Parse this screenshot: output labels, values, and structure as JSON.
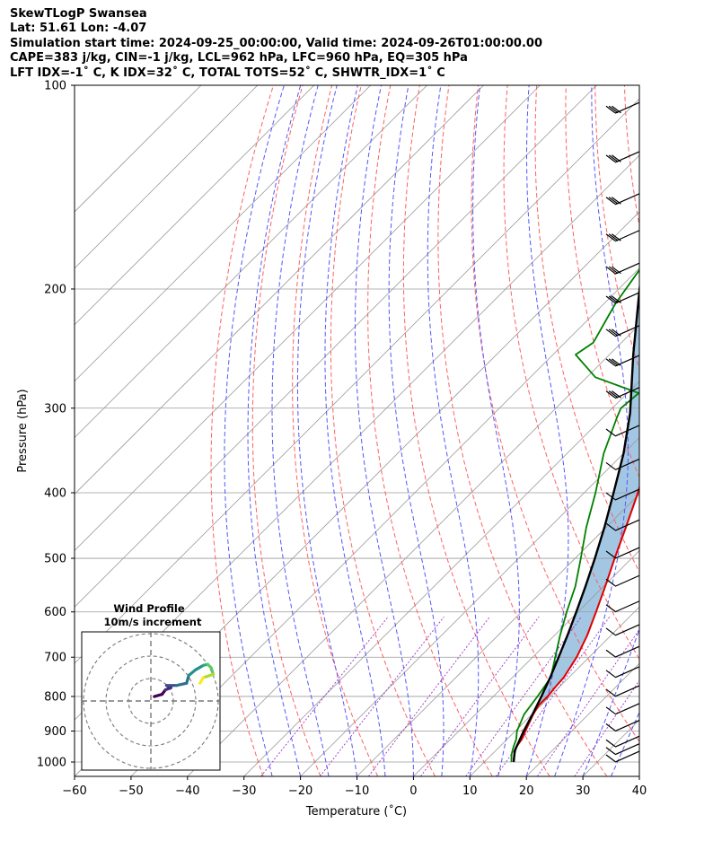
{
  "header": {
    "line1": "SkewTLogP Swansea",
    "line2": "Lat: 51.61   Lon: -4.07",
    "line3": "Simulation start time: 2024-09-25_00:00:00, Valid time: 2024-09-26T01:00:00.00",
    "line4": "CAPE=383 j/kg, CIN=-1 j/kg, LCL=962 hPa, LFC=960 hPa, EQ=305 hPa",
    "line5": "LFT IDX=-1˚ C, K IDX=32˚ C, TOTAL TOTS=52˚ C, SHWTR_IDX=1˚ C"
  },
  "chart_data": {
    "type": "line",
    "subtype": "skew-T log-P diagram",
    "xlabel": "Temperature (˚C)",
    "ylabel": "Pressure (hPa)",
    "xlim": [
      -60,
      40
    ],
    "ylim": [
      1050,
      100
    ],
    "y_scale": "log",
    "x_ticks": [
      "−60",
      "−50",
      "−40",
      "−30",
      "−20",
      "−10",
      "0",
      "10",
      "20",
      "30",
      "40"
    ],
    "y_ticks": [
      100,
      200,
      300,
      400,
      500,
      600,
      700,
      800,
      900,
      1000
    ],
    "grid": true,
    "colors": {
      "temperature": "#e00000",
      "dewpoint": "#008000",
      "parcel": "#000000",
      "cape_fill": "#7fb2d8",
      "cin_fill": "#e8a0a0",
      "dry_adiabat": "#ff6060",
      "moist_adiabat": "#5555ff",
      "mixing_ratio": "#9933cc",
      "isotherm": "#9a9a9a"
    },
    "series": [
      {
        "key": "temperature",
        "points": [
          [
            1000,
            15.2
          ],
          [
            975,
            14.0
          ],
          [
            950,
            13.0
          ],
          [
            925,
            12.6
          ],
          [
            900,
            11.8
          ],
          [
            850,
            10.2
          ],
          [
            825,
            9.6
          ],
          [
            800,
            9.6
          ],
          [
            775,
            9.3
          ],
          [
            750,
            9.1
          ],
          [
            700,
            7.8
          ],
          [
            650,
            5.8
          ],
          [
            600,
            3.2
          ],
          [
            550,
            0.3
          ],
          [
            500,
            -3.0
          ],
          [
            450,
            -6.5
          ],
          [
            400,
            -10.5
          ],
          [
            350,
            -15.5
          ],
          [
            300,
            -21.5
          ],
          [
            290,
            -22.7
          ],
          [
            280,
            -21.5
          ],
          [
            270,
            -22.0
          ],
          [
            250,
            -24.5
          ],
          [
            225,
            -28.0
          ],
          [
            200,
            -32.5
          ],
          [
            175,
            -37.5
          ],
          [
            150,
            -42.0
          ],
          [
            125,
            -46.5
          ],
          [
            115,
            -50.0
          ],
          [
            100,
            -56.0
          ]
        ]
      },
      {
        "key": "dewpoint",
        "points": [
          [
            1000,
            14.8
          ],
          [
            975,
            13.5
          ],
          [
            950,
            12.5
          ],
          [
            925,
            11.6
          ],
          [
            900,
            10.3
          ],
          [
            850,
            8.6
          ],
          [
            800,
            7.8
          ],
          [
            750,
            6.8
          ],
          [
            700,
            4.0
          ],
          [
            650,
            1.0
          ],
          [
            600,
            -2.0
          ],
          [
            550,
            -5.0
          ],
          [
            500,
            -9.0
          ],
          [
            450,
            -13.5
          ],
          [
            400,
            -18.0
          ],
          [
            350,
            -23.5
          ],
          [
            310,
            -27.5
          ],
          [
            300,
            -28.5
          ],
          [
            285,
            -28.0
          ],
          [
            270,
            -38.5
          ],
          [
            250,
            -46.0
          ],
          [
            240,
            -45.0
          ],
          [
            210,
            -48.0
          ],
          [
            190,
            -49.5
          ],
          [
            170,
            -51.0
          ],
          [
            140,
            -56.0
          ],
          [
            120,
            -61.5
          ],
          [
            100,
            -71.0
          ]
        ]
      },
      {
        "key": "parcel",
        "points": [
          [
            1000,
            15.2
          ],
          [
            962,
            13.4
          ],
          [
            900,
            11.5
          ],
          [
            850,
            10.1
          ],
          [
            800,
            8.5
          ],
          [
            750,
            6.7
          ],
          [
            700,
            4.6
          ],
          [
            650,
            2.3
          ],
          [
            600,
            -0.3
          ],
          [
            550,
            -3.2
          ],
          [
            500,
            -6.5
          ],
          [
            450,
            -10.3
          ],
          [
            400,
            -14.8
          ],
          [
            350,
            -20.0
          ],
          [
            305,
            -26.0
          ],
          [
            250,
            -35.8
          ],
          [
            200,
            -46.3
          ],
          [
            150,
            -59.5
          ],
          [
            125,
            -67.2
          ],
          [
            100,
            -77.0
          ]
        ]
      }
    ],
    "wind_barbs_levels": [
      110,
      130,
      150,
      170,
      190,
      210,
      235,
      260,
      290,
      330,
      370,
      410,
      455,
      500,
      550,
      600,
      650,
      700,
      750,
      800,
      850,
      900,
      950,
      975,
      1000
    ],
    "inset": {
      "title": "Wind Profile",
      "subtitle": "10m/s increment",
      "hodograph": [
        [
          -0.5,
          0.8
        ],
        [
          0.2,
          1.0
        ],
        [
          0.5,
          1.4
        ],
        [
          1.0,
          1.6
        ],
        [
          0.6,
          1.8
        ],
        [
          1.5,
          1.8
        ],
        [
          2.4,
          2.0
        ],
        [
          2.6,
          2.7
        ],
        [
          3.2,
          3.2
        ],
        [
          3.9,
          3.6
        ],
        [
          4.3,
          3.7
        ],
        [
          4.6,
          3.4
        ],
        [
          4.8,
          2.8
        ],
        [
          4.2,
          2.6
        ],
        [
          3.9,
          2.5
        ],
        [
          3.6,
          2.0
        ]
      ]
    }
  }
}
